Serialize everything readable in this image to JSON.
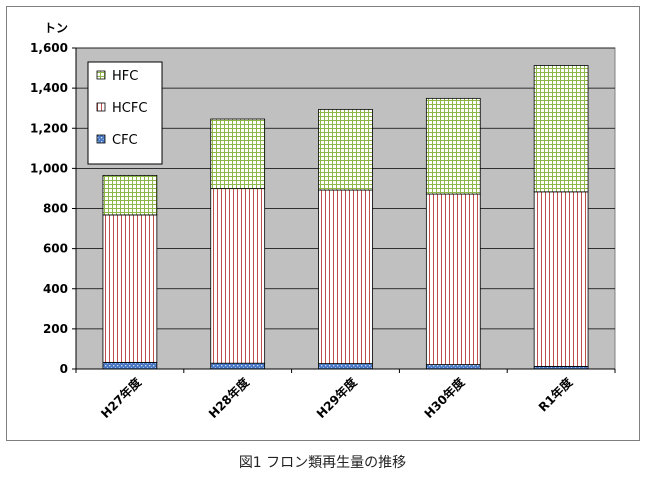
{
  "chart_data": {
    "type": "bar",
    "stacked": true,
    "unit_label": "トン",
    "categories": [
      "H27年度",
      "H28年度",
      "H29年度",
      "H30年度",
      "R1年度"
    ],
    "series": [
      {
        "name": "CFC",
        "values": [
          33,
          29,
          27,
          22,
          13
        ],
        "color": "#4a78c2",
        "pattern": "dots"
      },
      {
        "name": "HCFC",
        "values": [
          735,
          870,
          865,
          850,
          870
        ],
        "color": "#c0504d",
        "pattern": "vertical-lines"
      },
      {
        "name": "HFC",
        "values": [
          197,
          347,
          402,
          477,
          630
        ],
        "color": "#8db848",
        "pattern": "grid"
      }
    ],
    "ylim": [
      0,
      1600
    ],
    "yticks": [
      "0",
      "200",
      "400",
      "600",
      "800",
      "1,000",
      "1,200",
      "1,400",
      "1,600"
    ],
    "ytick_values": [
      0,
      200,
      400,
      600,
      800,
      1000,
      1200,
      1400,
      1600
    ],
    "grid": true,
    "legend_position": "top-left",
    "legend_order": [
      "HFC",
      "HCFC",
      "CFC"
    ],
    "plot_background": "#c0c0c0"
  },
  "caption": "図1 フロン類再生量の推移"
}
